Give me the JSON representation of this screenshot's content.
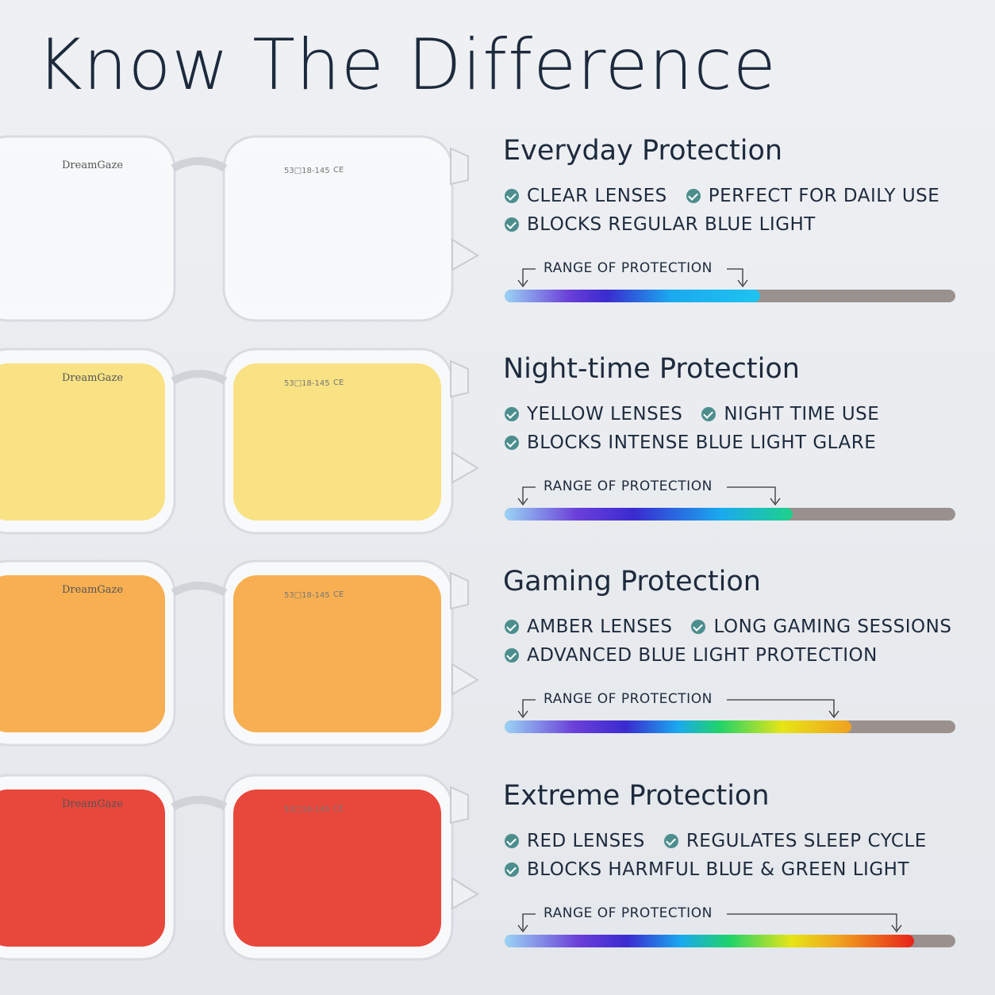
{
  "title": "Know The Difference",
  "sections": [
    {
      "heading": "Everyday Protection",
      "features": [
        "CLEAR LENSES",
        "PERFECT FOR DAILY USE",
        "BLOCKS REGULAR BLUE LIGHT"
      ],
      "range_label": "RANGE OF PROTECTION",
      "brand": "DreamGaze",
      "size": "53□18-145",
      "mark": "CE"
    },
    {
      "heading": "Night-time Protection",
      "features": [
        "YELLOW LENSES",
        "NIGHT TIME USE",
        "BLOCKS INTENSE BLUE LIGHT GLARE"
      ],
      "range_label": "RANGE OF PROTECTION",
      "brand": "DreamGaze",
      "size": "53□18-145",
      "mark": "CE"
    },
    {
      "heading": "Gaming Protection",
      "features": [
        "AMBER LENSES",
        "LONG GAMING SESSIONS",
        "ADVANCED BLUE LIGHT PROTECTION"
      ],
      "range_label": "RANGE OF PROTECTION",
      "brand": "DreamGaze",
      "size": "53□18-145",
      "mark": "CE"
    },
    {
      "heading": "Extreme Protection",
      "features": [
        "RED LENSES",
        "REGULATES SLEEP CYCLE",
        "BLOCKS HARMFUL BLUE & GREEN LIGHT"
      ],
      "range_label": "RANGE OF PROTECTION",
      "brand": "DreamGaze",
      "size": "53□18-145",
      "mark": "CE"
    }
  ]
}
